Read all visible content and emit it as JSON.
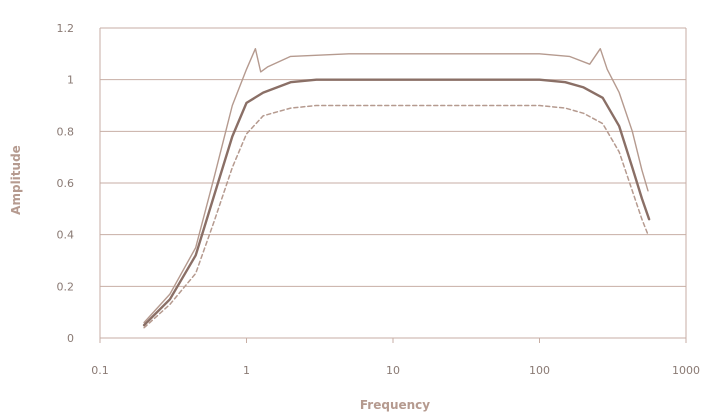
{
  "chart_data": {
    "type": "line",
    "title": "",
    "xlabel": "Frequency",
    "ylabel": "Amplitude",
    "x_scale": "log",
    "xlim": [
      0.1,
      1000
    ],
    "ylim": [
      0,
      1.2
    ],
    "x_ticks": [
      "0.1",
      "1",
      "10",
      "100",
      "1000"
    ],
    "y_ticks": [
      "0",
      "0.2",
      "0.4",
      "0.6",
      "0.8",
      "1",
      "1.2"
    ],
    "grid": "horizontal",
    "legend": "none",
    "series": [
      {
        "style": "solid-thin",
        "color": "#b59a8f",
        "points": [
          [
            0.2,
            0.06
          ],
          [
            0.3,
            0.17
          ],
          [
            0.45,
            0.35
          ],
          [
            0.6,
            0.62
          ],
          [
            0.8,
            0.9
          ],
          [
            1.0,
            1.04
          ],
          [
            1.15,
            1.12
          ],
          [
            1.25,
            1.03
          ],
          [
            1.4,
            1.05
          ],
          [
            2,
            1.09
          ],
          [
            5,
            1.1
          ],
          [
            20,
            1.1
          ],
          [
            100,
            1.1
          ],
          [
            160,
            1.09
          ],
          [
            220,
            1.06
          ],
          [
            260,
            1.12
          ],
          [
            290,
            1.04
          ],
          [
            350,
            0.95
          ],
          [
            430,
            0.8
          ],
          [
            500,
            0.65
          ],
          [
            550,
            0.57
          ]
        ]
      },
      {
        "style": "solid-thick",
        "color": "#8a6f66",
        "points": [
          [
            0.2,
            0.05
          ],
          [
            0.3,
            0.15
          ],
          [
            0.45,
            0.32
          ],
          [
            0.6,
            0.55
          ],
          [
            0.8,
            0.78
          ],
          [
            1.0,
            0.91
          ],
          [
            1.3,
            0.95
          ],
          [
            2,
            0.99
          ],
          [
            3,
            1.0
          ],
          [
            10,
            1.0
          ],
          [
            50,
            1.0
          ],
          [
            100,
            1.0
          ],
          [
            150,
            0.99
          ],
          [
            200,
            0.97
          ],
          [
            270,
            0.93
          ],
          [
            350,
            0.82
          ],
          [
            430,
            0.66
          ],
          [
            500,
            0.54
          ],
          [
            560,
            0.46
          ]
        ]
      },
      {
        "style": "dashed",
        "color": "#b59a8f",
        "points": [
          [
            0.2,
            0.04
          ],
          [
            0.3,
            0.13
          ],
          [
            0.45,
            0.25
          ],
          [
            0.6,
            0.45
          ],
          [
            0.8,
            0.66
          ],
          [
            1.0,
            0.79
          ],
          [
            1.3,
            0.86
          ],
          [
            2,
            0.89
          ],
          [
            3,
            0.9
          ],
          [
            10,
            0.9
          ],
          [
            50,
            0.9
          ],
          [
            100,
            0.9
          ],
          [
            150,
            0.89
          ],
          [
            200,
            0.87
          ],
          [
            270,
            0.83
          ],
          [
            350,
            0.72
          ],
          [
            430,
            0.57
          ],
          [
            500,
            0.46
          ],
          [
            550,
            0.4
          ]
        ]
      }
    ]
  }
}
